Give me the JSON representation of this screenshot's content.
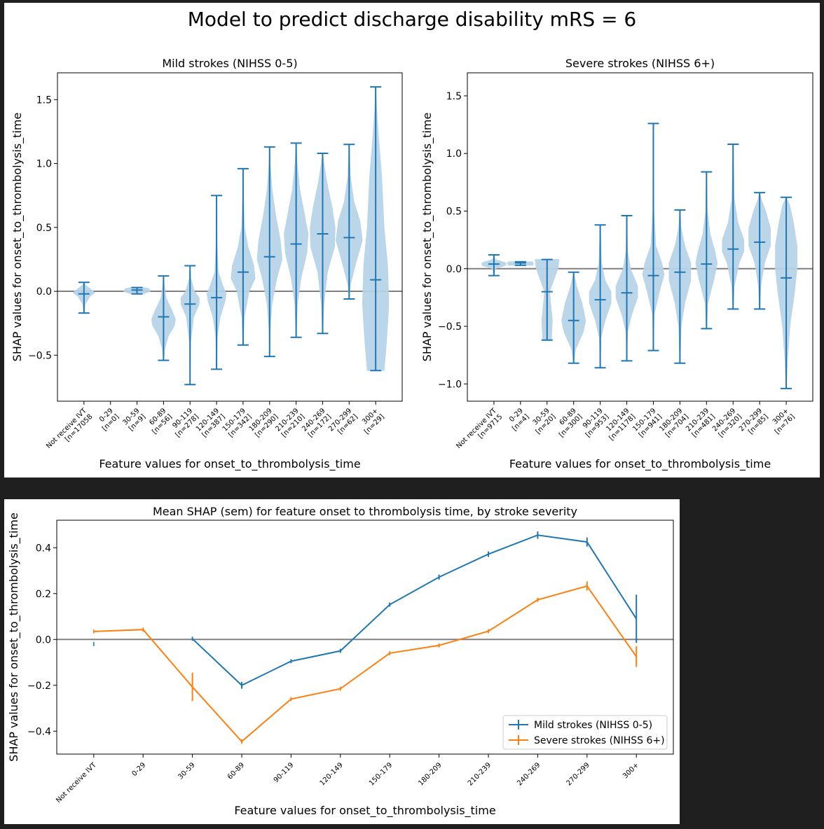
{
  "figure": {
    "suptitle": "Model to predict discharge disability mRS = 6",
    "background": "#1f1f1f",
    "colors": {
      "blue": "#1f77b4",
      "orange": "#ff7f0e",
      "violin_fill": "#b8d3e8",
      "zero_line": "#808080"
    }
  },
  "chart_data": [
    {
      "type": "violin",
      "title": "Mild strokes (NIHSS 0-5)",
      "xlabel": "Feature values for onset_to_thrombolysis_time",
      "ylabel": "SHAP values for onset_to_thrombolysis_time",
      "ylim": [
        -0.86,
        1.71
      ],
      "yticks": [
        -0.5,
        0.0,
        0.5,
        1.0,
        1.5
      ],
      "ytick_labels": [
        "−0.5",
        "0.0",
        "0.5",
        "1.0",
        "1.5"
      ],
      "categories": [
        "Not receive IVT\n[n=17058",
        "0-29\n[n=0]",
        "30-59\n[n=9]",
        "60-89\n[n=56]",
        "90-119\n[n=278]",
        "120-149\n[n=387]",
        "150-179\n[n=342]",
        "180-209\n[n=290]",
        "210-239\n[n=210]",
        "240-269\n[n=172]",
        "270-299\n[n=62]",
        "300+\n[n=29]"
      ],
      "violins": [
        {
          "min": -0.17,
          "max": 0.07,
          "median": -0.02,
          "shape": [
            [
              -0.17,
              0.0
            ],
            [
              -0.1,
              0.05
            ],
            [
              -0.04,
              0.25
            ],
            [
              -0.01,
              0.45
            ],
            [
              0.02,
              0.25
            ],
            [
              0.05,
              0.05
            ],
            [
              0.07,
              0.0
            ]
          ]
        },
        null,
        {
          "min": -0.02,
          "max": 0.03,
          "median": 0.01,
          "shape": [
            [
              -0.02,
              0.25
            ],
            [
              0.0,
              0.55
            ],
            [
              0.02,
              0.5
            ],
            [
              0.03,
              0.25
            ]
          ]
        },
        {
          "min": -0.54,
          "max": 0.12,
          "median": -0.2,
          "shape": [
            [
              -0.54,
              0.0
            ],
            [
              -0.45,
              0.05
            ],
            [
              -0.35,
              0.2
            ],
            [
              -0.27,
              0.45
            ],
            [
              -0.22,
              0.5
            ],
            [
              -0.15,
              0.35
            ],
            [
              -0.05,
              0.1
            ],
            [
              0.05,
              0.03
            ],
            [
              0.12,
              0.0
            ]
          ]
        },
        {
          "min": -0.73,
          "max": 0.2,
          "median": -0.1,
          "shape": [
            [
              -0.73,
              0.0
            ],
            [
              -0.4,
              0.02
            ],
            [
              -0.2,
              0.15
            ],
            [
              -0.1,
              0.38
            ],
            [
              -0.05,
              0.38
            ],
            [
              0.0,
              0.18
            ],
            [
              0.1,
              0.03
            ],
            [
              0.2,
              0.0
            ]
          ]
        },
        {
          "min": -0.61,
          "max": 0.75,
          "median": -0.05,
          "shape": [
            [
              -0.61,
              0.0
            ],
            [
              -0.35,
              0.03
            ],
            [
              -0.2,
              0.15
            ],
            [
              -0.08,
              0.35
            ],
            [
              -0.02,
              0.4
            ],
            [
              0.05,
              0.25
            ],
            [
              0.15,
              0.07
            ],
            [
              0.4,
              0.01
            ],
            [
              0.75,
              0.0
            ]
          ]
        },
        {
          "min": -0.42,
          "max": 0.96,
          "median": 0.15,
          "shape": [
            [
              -0.42,
              0.0
            ],
            [
              -0.2,
              0.05
            ],
            [
              0.0,
              0.25
            ],
            [
              0.1,
              0.5
            ],
            [
              0.2,
              0.45
            ],
            [
              0.35,
              0.2
            ],
            [
              0.5,
              0.06
            ],
            [
              0.7,
              0.02
            ],
            [
              0.96,
              0.0
            ]
          ]
        },
        {
          "min": -0.51,
          "max": 1.13,
          "median": 0.27,
          "shape": [
            [
              -0.51,
              0.0
            ],
            [
              -0.3,
              0.02
            ],
            [
              -0.1,
              0.1
            ],
            [
              0.1,
              0.3
            ],
            [
              0.25,
              0.52
            ],
            [
              0.4,
              0.45
            ],
            [
              0.6,
              0.25
            ],
            [
              0.8,
              0.1
            ],
            [
              1.0,
              0.02
            ],
            [
              1.13,
              0.0
            ]
          ]
        },
        {
          "min": -0.36,
          "max": 1.16,
          "median": 0.37,
          "shape": [
            [
              -0.36,
              0.0
            ],
            [
              -0.1,
              0.05
            ],
            [
              0.1,
              0.2
            ],
            [
              0.3,
              0.45
            ],
            [
              0.45,
              0.5
            ],
            [
              0.6,
              0.35
            ],
            [
              0.8,
              0.15
            ],
            [
              1.0,
              0.04
            ],
            [
              1.16,
              0.0
            ]
          ]
        },
        {
          "min": -0.33,
          "max": 1.08,
          "median": 0.45,
          "shape": [
            [
              -0.33,
              0.0
            ],
            [
              -0.1,
              0.05
            ],
            [
              0.15,
              0.2
            ],
            [
              0.35,
              0.5
            ],
            [
              0.5,
              0.52
            ],
            [
              0.65,
              0.4
            ],
            [
              0.85,
              0.18
            ],
            [
              1.0,
              0.05
            ],
            [
              1.08,
              0.0
            ]
          ]
        },
        {
          "min": -0.06,
          "max": 1.15,
          "median": 0.42,
          "shape": [
            [
              -0.06,
              0.0
            ],
            [
              0.05,
              0.05
            ],
            [
              0.2,
              0.25
            ],
            [
              0.4,
              0.55
            ],
            [
              0.55,
              0.45
            ],
            [
              0.7,
              0.2
            ],
            [
              0.9,
              0.05
            ],
            [
              1.15,
              0.0
            ]
          ]
        },
        {
          "min": -0.62,
          "max": 1.6,
          "median": 0.09,
          "shape": [
            [
              -0.62,
              0.35
            ],
            [
              -0.4,
              0.45
            ],
            [
              -0.1,
              0.55
            ],
            [
              0.2,
              0.5
            ],
            [
              0.5,
              0.35
            ],
            [
              0.9,
              0.25
            ],
            [
              1.2,
              0.12
            ],
            [
              1.45,
              0.03
            ],
            [
              1.6,
              0.0
            ]
          ]
        }
      ]
    },
    {
      "type": "violin",
      "title": "Severe strokes (NIHSS 6+)",
      "xlabel": "Feature values for onset_to_thrombolysis_time",
      "ylabel": "SHAP values for onset_to_thrombolysis_time",
      "ylim": [
        -1.15,
        1.7
      ],
      "yticks": [
        -1.0,
        -0.5,
        0.0,
        0.5,
        1.0,
        1.5
      ],
      "ytick_labels": [
        "−1.0",
        "−0.5",
        "0.0",
        "0.5",
        "1.0",
        "1.5"
      ],
      "categories": [
        "Not receive IVT\n[n=9715",
        "0-29\n[n=4]",
        "30-59\n[n=20]",
        "60-89\n[n=300]",
        "90-119\n[n=953]",
        "120-149\n[n=1178]",
        "150-179\n[n=941]",
        "180-209\n[n=704]",
        "210-239\n[n=481]",
        "240-269\n[n=320]",
        "270-299\n[n=85]",
        "300+\n[n=76]"
      ],
      "violins": [
        {
          "min": -0.06,
          "max": 0.12,
          "median": 0.04,
          "shape": [
            [
              -0.06,
              0.0
            ],
            [
              0.0,
              0.05
            ],
            [
              0.03,
              0.5
            ],
            [
              0.05,
              0.5
            ],
            [
              0.08,
              0.05
            ],
            [
              0.12,
              0.0
            ]
          ]
        },
        {
          "min": 0.03,
          "max": 0.06,
          "median": 0.05,
          "shape": [
            [
              0.03,
              0.5
            ],
            [
              0.045,
              0.55
            ],
            [
              0.06,
              0.5
            ]
          ]
        },
        {
          "min": -0.62,
          "max": 0.08,
          "median": -0.2,
          "shape": [
            [
              -0.62,
              0.18
            ],
            [
              -0.45,
              0.22
            ],
            [
              -0.2,
              0.1
            ],
            [
              0.0,
              0.45
            ],
            [
              0.08,
              0.5
            ]
          ]
        },
        {
          "min": -0.82,
          "max": -0.03,
          "median": -0.45,
          "shape": [
            [
              -0.82,
              0.0
            ],
            [
              -0.7,
              0.08
            ],
            [
              -0.55,
              0.4
            ],
            [
              -0.45,
              0.5
            ],
            [
              -0.3,
              0.35
            ],
            [
              -0.15,
              0.12
            ],
            [
              -0.03,
              0.0
            ]
          ]
        },
        {
          "min": -0.86,
          "max": 0.38,
          "median": -0.27,
          "shape": [
            [
              -0.86,
              0.0
            ],
            [
              -0.6,
              0.03
            ],
            [
              -0.45,
              0.2
            ],
            [
              -0.3,
              0.45
            ],
            [
              -0.2,
              0.45
            ],
            [
              -0.1,
              0.2
            ],
            [
              0.05,
              0.05
            ],
            [
              0.38,
              0.0
            ]
          ]
        },
        {
          "min": -0.8,
          "max": 0.46,
          "median": -0.21,
          "shape": [
            [
              -0.8,
              0.0
            ],
            [
              -0.55,
              0.03
            ],
            [
              -0.4,
              0.2
            ],
            [
              -0.25,
              0.45
            ],
            [
              -0.15,
              0.45
            ],
            [
              0.0,
              0.15
            ],
            [
              0.15,
              0.03
            ],
            [
              0.46,
              0.0
            ]
          ]
        },
        {
          "min": -0.71,
          "max": 1.26,
          "median": -0.06,
          "shape": [
            [
              -0.71,
              0.0
            ],
            [
              -0.4,
              0.03
            ],
            [
              -0.2,
              0.25
            ],
            [
              -0.05,
              0.45
            ],
            [
              0.05,
              0.35
            ],
            [
              0.2,
              0.1
            ],
            [
              0.5,
              0.02
            ],
            [
              1.26,
              0.0
            ]
          ]
        },
        {
          "min": -0.82,
          "max": 0.51,
          "median": -0.03,
          "shape": [
            [
              -0.82,
              0.0
            ],
            [
              -0.5,
              0.05
            ],
            [
              -0.3,
              0.2
            ],
            [
              -0.1,
              0.45
            ],
            [
              0.05,
              0.45
            ],
            [
              0.2,
              0.2
            ],
            [
              0.35,
              0.05
            ],
            [
              0.51,
              0.0
            ]
          ]
        },
        {
          "min": -0.52,
          "max": 0.84,
          "median": 0.04,
          "shape": [
            [
              -0.52,
              0.0
            ],
            [
              -0.3,
              0.05
            ],
            [
              -0.1,
              0.3
            ],
            [
              0.05,
              0.45
            ],
            [
              0.15,
              0.35
            ],
            [
              0.3,
              0.15
            ],
            [
              0.5,
              0.03
            ],
            [
              0.84,
              0.0
            ]
          ]
        },
        {
          "min": -0.35,
          "max": 1.08,
          "median": 0.17,
          "shape": [
            [
              -0.35,
              0.0
            ],
            [
              -0.15,
              0.05
            ],
            [
              0.05,
              0.25
            ],
            [
              0.15,
              0.45
            ],
            [
              0.25,
              0.45
            ],
            [
              0.4,
              0.2
            ],
            [
              0.6,
              0.05
            ],
            [
              1.08,
              0.0
            ]
          ]
        },
        {
          "min": -0.35,
          "max": 0.66,
          "median": 0.23,
          "shape": [
            [
              -0.35,
              0.0
            ],
            [
              -0.15,
              0.05
            ],
            [
              0.05,
              0.2
            ],
            [
              0.2,
              0.45
            ],
            [
              0.35,
              0.45
            ],
            [
              0.5,
              0.25
            ],
            [
              0.6,
              0.07
            ],
            [
              0.66,
              0.0
            ]
          ]
        },
        {
          "min": -1.04,
          "max": 0.62,
          "median": -0.08,
          "shape": [
            [
              -1.04,
              0.0
            ],
            [
              -0.8,
              0.05
            ],
            [
              -0.5,
              0.15
            ],
            [
              -0.2,
              0.35
            ],
            [
              0.0,
              0.45
            ],
            [
              0.2,
              0.45
            ],
            [
              0.4,
              0.3
            ],
            [
              0.55,
              0.15
            ],
            [
              0.62,
              0.0
            ]
          ]
        }
      ]
    },
    {
      "type": "line",
      "title": "Mean SHAP (sem) for feature onset to thrombolysis time, by stroke severity",
      "xlabel": "Feature values for onset_to_thrombolysis_time",
      "ylabel": "SHAP values for onset_to_thrombolysis_time",
      "categories": [
        "Not receive IVT",
        "0-29",
        "30-59",
        "60-89",
        "90-119",
        "120-149",
        "150-179",
        "180-209",
        "210-239",
        "240-269",
        "270-299",
        "300+"
      ],
      "ylim": [
        -0.5,
        0.52
      ],
      "yticks": [
        -0.4,
        -0.2,
        0.0,
        0.2,
        0.4
      ],
      "ytick_labels": [
        "−0.4",
        "−0.2",
        "0.0",
        "0.2",
        "0.4"
      ],
      "legend_loc": "lower right",
      "series": [
        {
          "name": "Mild strokes (NIHSS 0-5)",
          "color": "#1f77b4",
          "values": [
            -0.02,
            null,
            0.003,
            -0.2,
            -0.095,
            -0.05,
            0.152,
            0.272,
            0.372,
            0.455,
            0.425,
            0.09
          ],
          "sem": [
            0.001,
            null,
            0.006,
            0.015,
            0.006,
            0.006,
            0.009,
            0.011,
            0.012,
            0.016,
            0.02,
            0.105
          ]
        },
        {
          "name": "Severe strokes (NIHSS 6+)",
          "color": "#ff7f0e",
          "values": [
            0.035,
            0.043,
            -0.207,
            -0.445,
            -0.26,
            -0.215,
            -0.06,
            -0.026,
            0.036,
            0.173,
            0.233,
            -0.075
          ],
          "sem": [
            0.001,
            0.005,
            0.062,
            0.009,
            0.004,
            0.004,
            0.005,
            0.005,
            0.006,
            0.009,
            0.02,
            0.045
          ]
        }
      ]
    }
  ]
}
